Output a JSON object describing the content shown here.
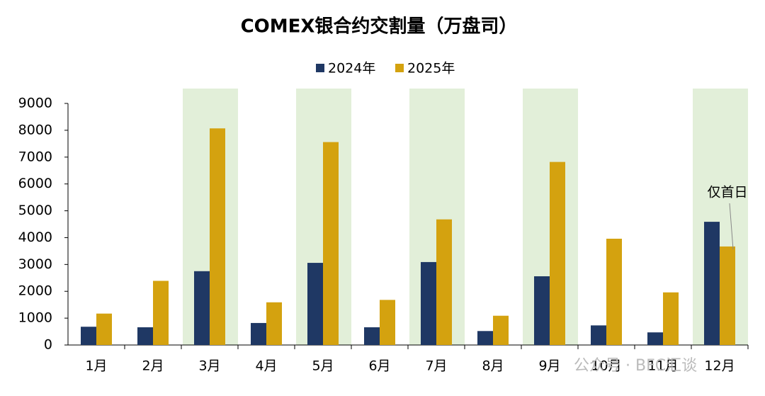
{
  "chart_data": {
    "type": "bar",
    "title": "COMEX银合约交割量（万盘司）",
    "categories": [
      "1月",
      "2月",
      "3月",
      "4月",
      "5月",
      "6月",
      "7月",
      "8月",
      "9月",
      "10月",
      "11月",
      "12月"
    ],
    "series": [
      {
        "name": "2024年",
        "color": "#1f3864",
        "values": [
          680,
          660,
          2750,
          820,
          3060,
          660,
          3090,
          520,
          2560,
          730,
          470,
          4590
        ]
      },
      {
        "name": "2025年",
        "color": "#d4a20f",
        "values": [
          1170,
          2390,
          8070,
          1590,
          7560,
          1680,
          4680,
          1090,
          6820,
          3960,
          1960,
          3670
        ]
      }
    ],
    "ylim": [
      0,
      9000
    ],
    "yticks": [
      0,
      1000,
      2000,
      3000,
      4000,
      5000,
      6000,
      7000,
      8000,
      9000
    ],
    "highlighted": [
      2,
      4,
      6,
      8,
      11
    ],
    "highlight_color": "#e2efd9",
    "annotation": "仅首日",
    "watermark": "公众号 · BFC汇谈"
  }
}
